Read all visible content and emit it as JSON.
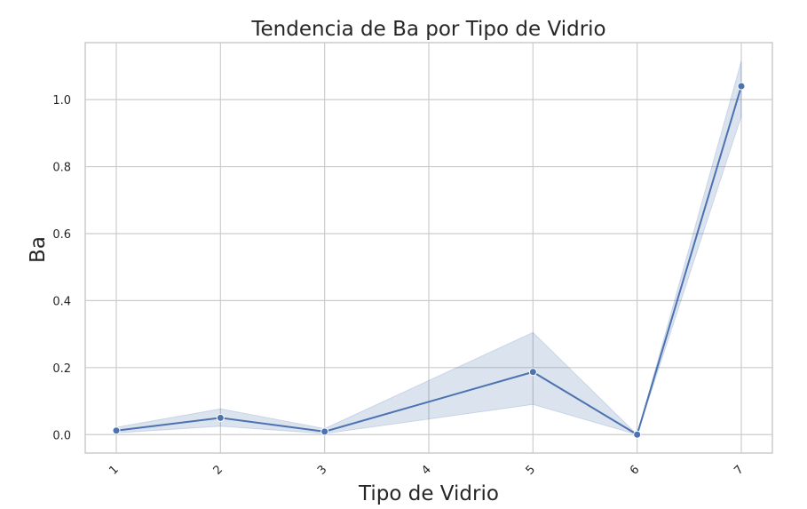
{
  "chart_data": {
    "type": "line",
    "title": "Tendencia de Ba por Tipo de Vidrio",
    "xlabel": "Tipo de Vidrio",
    "ylabel": "Ba",
    "categories": [
      "1",
      "2",
      "3",
      "4",
      "5",
      "6",
      "7"
    ],
    "yticks": [
      "0.0",
      "0.2",
      "0.4",
      "0.6",
      "0.8",
      "1.0"
    ],
    "ylim": [
      -0.055,
      1.17
    ],
    "grid": true,
    "series": [
      {
        "x": [
          1,
          2,
          3,
          5,
          6,
          7
        ],
        "values": [
          0.012,
          0.05,
          0.009,
          0.187,
          0.0,
          1.04
        ],
        "ci_lower": [
          0.005,
          0.025,
          0.003,
          0.09,
          0.0,
          0.95
        ],
        "ci_upper": [
          0.022,
          0.077,
          0.018,
          0.305,
          0.0,
          1.115
        ]
      }
    ],
    "color": "#4c72b0"
  }
}
